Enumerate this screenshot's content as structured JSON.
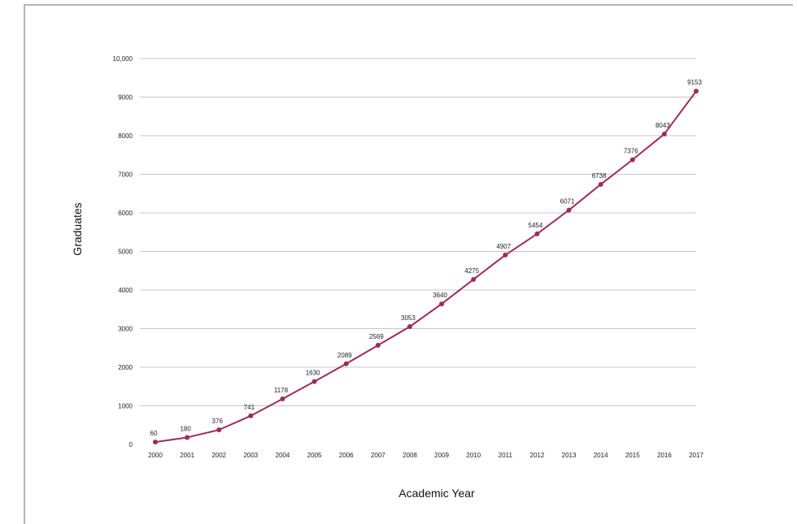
{
  "chart_data": {
    "type": "line",
    "title": "",
    "xlabel": "Academic Year",
    "ylabel": "Graduates",
    "ylim": [
      0,
      10000
    ],
    "yticks": [
      0,
      1000,
      2000,
      3000,
      4000,
      5000,
      6000,
      7000,
      8000,
      9000,
      10000
    ],
    "ytick_labels": [
      "0",
      "1000",
      "2000",
      "3000",
      "4000",
      "5000",
      "6000",
      "7000",
      "8000",
      "9000",
      "10,000"
    ],
    "grid": true,
    "legend": "none",
    "categories": [
      "2000",
      "2001",
      "2002",
      "2003",
      "2004",
      "2005",
      "2006",
      "2007",
      "2008",
      "2009",
      "2010",
      "2011",
      "2012",
      "2013",
      "2014",
      "2015",
      "2016",
      "2017"
    ],
    "series": [
      {
        "color": "#9e2b5a",
        "values": [
          60,
          180,
          376,
          741,
          1178,
          1630,
          2089,
          2569,
          3053,
          3640,
          4275,
          4907,
          5454,
          6071,
          6738,
          7376,
          8043,
          9153
        ],
        "labels": [
          "60",
          "180",
          "376",
          "741",
          "1178",
          "1630",
          "2089",
          "2569",
          "3053",
          "3640",
          "4275",
          "4907",
          "5454",
          "6071",
          "6738",
          "7376",
          "8043",
          "9153"
        ]
      }
    ]
  },
  "colors": {
    "line": "#9e2b5a",
    "grid": "#c8c8c8",
    "frame": "#b3b3b3"
  }
}
